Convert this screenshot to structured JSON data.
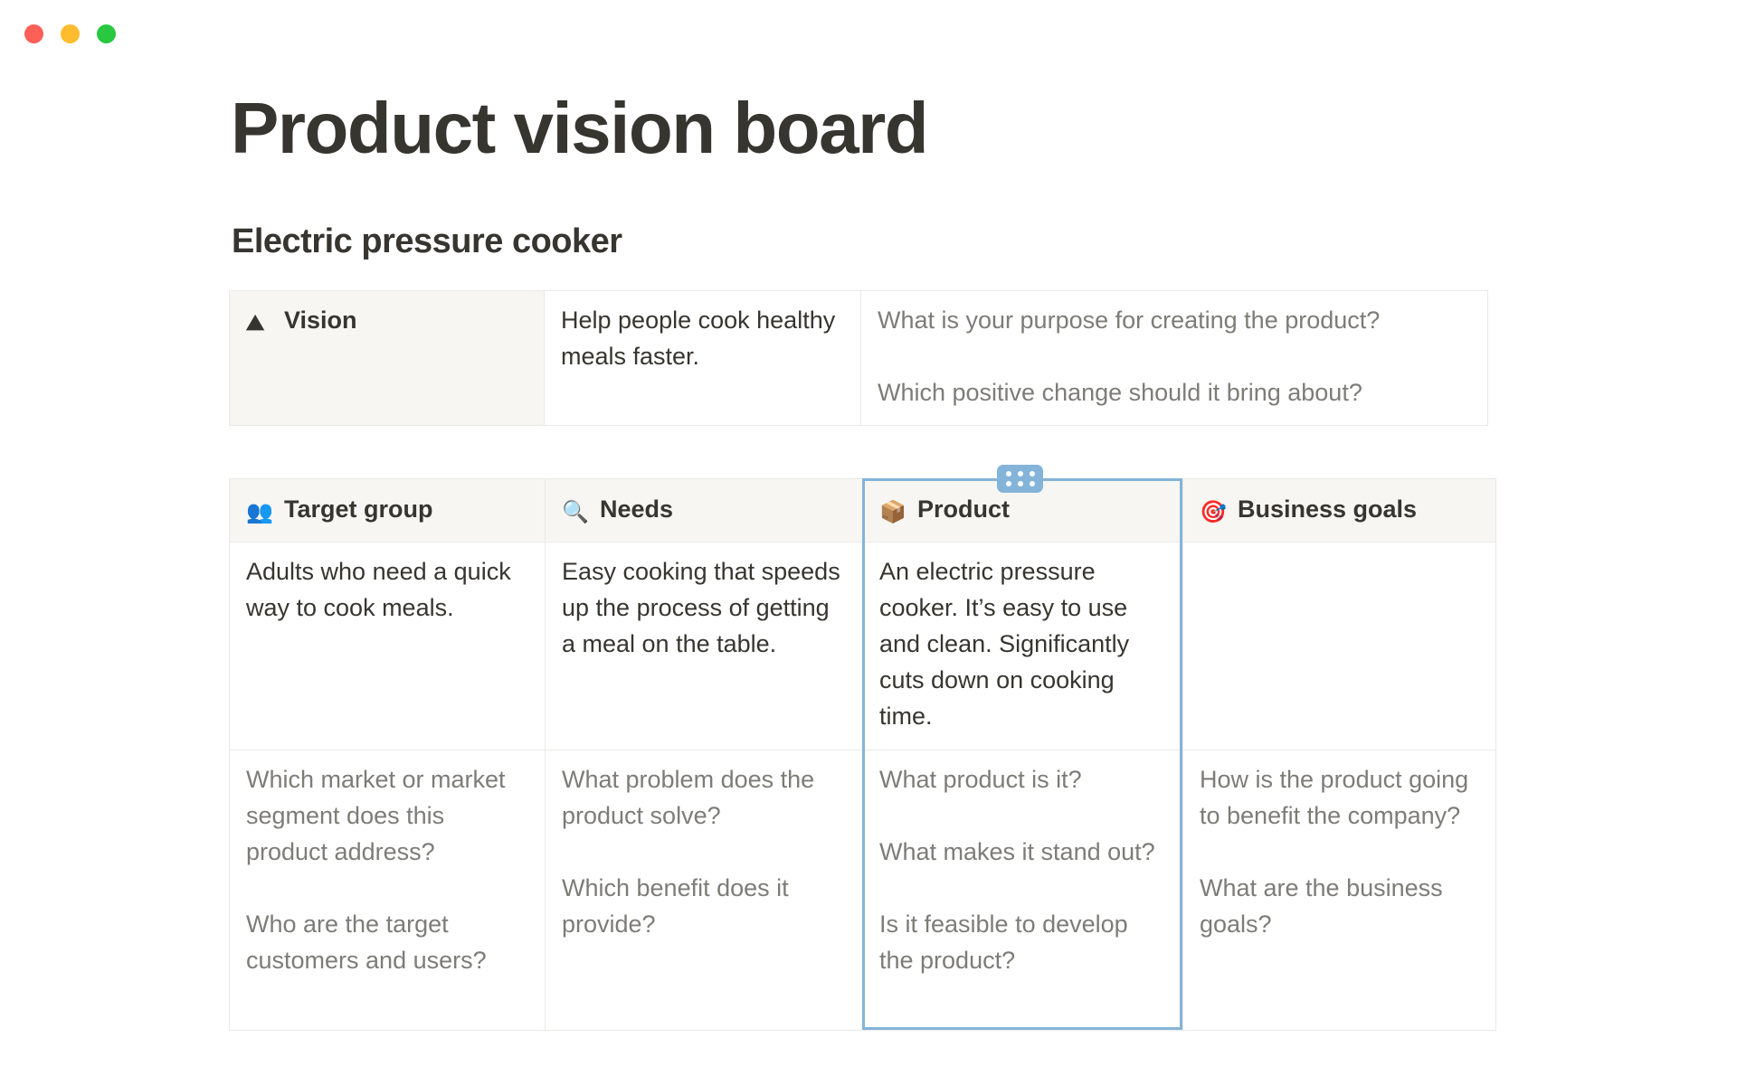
{
  "window": {
    "controls": [
      {
        "name": "close",
        "color": "#fe5f57"
      },
      {
        "name": "minimize",
        "color": "#febc2e"
      },
      {
        "name": "zoom",
        "color": "#28c840"
      }
    ]
  },
  "title": "Product vision board",
  "subtitle": "Electric pressure cooker",
  "accent_color": "#84b4d9",
  "vision": {
    "icon": "mountain-icon",
    "label": "Vision",
    "statement": "Help people cook healthy meals faster.",
    "prompts": [
      "What is your purpose for creating the product?",
      "Which positive change should it bring about?"
    ]
  },
  "board": {
    "columns": [
      {
        "icon": "people-icon",
        "emoji": "👥",
        "label": "Target group",
        "content": "Adults who need a quick way to cook meals.",
        "prompts": [
          "Which market or market segment does this product address?",
          "Who are the target customers and users?"
        ]
      },
      {
        "icon": "magnifier-icon",
        "emoji": "🔍",
        "label": "Needs",
        "content": "Easy cooking that speeds up the process of getting a meal on the table.",
        "prompts": [
          "What problem does the product solve?",
          "Which benefit does it provide?"
        ]
      },
      {
        "icon": "package-icon",
        "emoji": "📦",
        "label": "Product",
        "content": "An electric pressure cooker. It’s easy to use and clean. Significantly cuts down on cooking time.",
        "prompts": [
          "What product is it?",
          "What makes it stand out?",
          "Is it feasible to develop the product?"
        ]
      },
      {
        "icon": "target-icon",
        "emoji": "🎯",
        "label": "Business goals",
        "content": "",
        "prompts": [
          "How is the product going to benefit the company?",
          "What are the business goals?"
        ]
      }
    ]
  }
}
